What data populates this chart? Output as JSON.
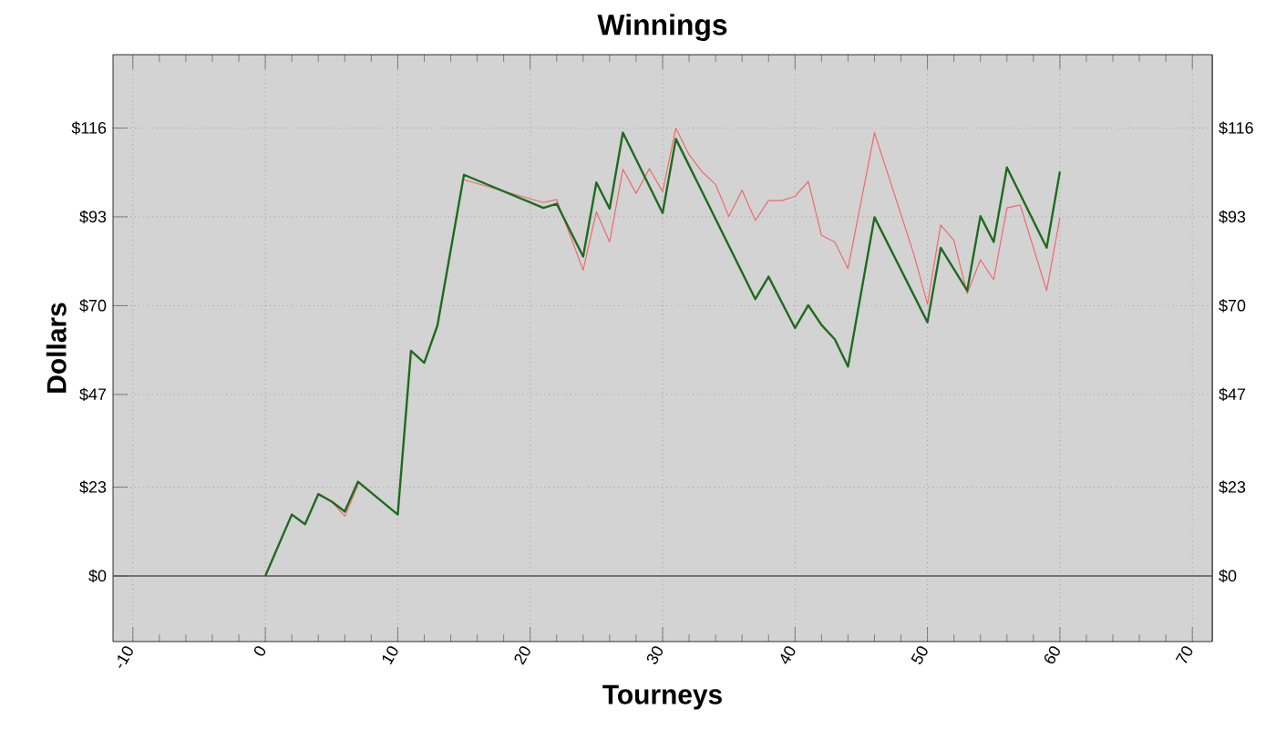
{
  "chart_data": {
    "type": "line",
    "title": "Winnings",
    "xlabel": "Tourneys",
    "ylabel": "Dollars",
    "xlim": [
      -11.5,
      71.5
    ],
    "ylim": [
      -17,
      135
    ],
    "y2lim": [
      -17,
      135
    ],
    "xticks": [
      -10,
      0,
      10,
      20,
      30,
      40,
      50,
      60,
      70
    ],
    "yticks": [
      {
        "value": 0,
        "label": "$0"
      },
      {
        "value": 23,
        "label": "$23"
      },
      {
        "value": 47,
        "label": "$47"
      },
      {
        "value": 70,
        "label": "$70"
      },
      {
        "value": 93,
        "label": "$93"
      },
      {
        "value": 116,
        "label": "$116"
      }
    ],
    "y2ticks": [
      {
        "value": 0,
        "label": "$0"
      },
      {
        "value": 23,
        "label": "$23"
      },
      {
        "value": 47,
        "label": "$47"
      },
      {
        "value": 70,
        "label": "$70"
      },
      {
        "value": 93,
        "label": "$93"
      },
      {
        "value": 116,
        "label": "$116"
      }
    ],
    "grid": true,
    "marker": "none",
    "line_style": "solid",
    "ref_lines": [
      {
        "axis": "y",
        "value": 0,
        "color": "#555555"
      }
    ],
    "series": [
      {
        "color": "#ee6a6a",
        "x": [
          5,
          6,
          7,
          10,
          11,
          12,
          13,
          15,
          21,
          22,
          24,
          25,
          26,
          27,
          28,
          29,
          30,
          31,
          32,
          33,
          34,
          35,
          36,
          37,
          38,
          39,
          40,
          41,
          42,
          43,
          44,
          46,
          49,
          50,
          51,
          52,
          53,
          54,
          55,
          56,
          57,
          59,
          60
        ],
        "values": [
          19.3,
          15.5,
          23.5,
          null,
          null,
          null,
          null,
          102.6,
          96.7,
          97.5,
          79.2,
          94.3,
          86.5,
          105.3,
          99.1,
          105.5,
          99.5,
          116,
          109.1,
          104.6,
          101.4,
          93.1,
          99.9,
          92.1,
          97.2,
          97.2,
          98.3,
          102.2,
          88.2,
          86.5,
          79.6,
          114.8,
          83,
          70.4,
          90.9,
          86.9,
          73.1,
          81.9,
          76.7,
          95.3,
          96.1,
          73.9,
          92.8
        ]
      },
      {
        "color": "#1e6b1e",
        "x": [
          0,
          2,
          3,
          4,
          5,
          6,
          7,
          10,
          11,
          12,
          13,
          15,
          21,
          22,
          24,
          25,
          26,
          27,
          30,
          31,
          37,
          38,
          40,
          41,
          42,
          43,
          44,
          46,
          50,
          51,
          53,
          54,
          55,
          56,
          59,
          60
        ],
        "values": [
          0,
          15.9,
          13.4,
          21.2,
          19.3,
          16.7,
          24.4,
          15.9,
          58.3,
          55.2,
          64.9,
          103.9,
          95.3,
          96.4,
          82.7,
          101.9,
          95.1,
          114.8,
          94.0,
          113.2,
          71.7,
          77.5,
          64.2,
          70.1,
          65.0,
          61.3,
          54.2,
          92.9,
          65.7,
          85.0,
          73.9,
          93.2,
          86.5,
          105.8,
          85.0,
          104.7
        ]
      }
    ]
  }
}
